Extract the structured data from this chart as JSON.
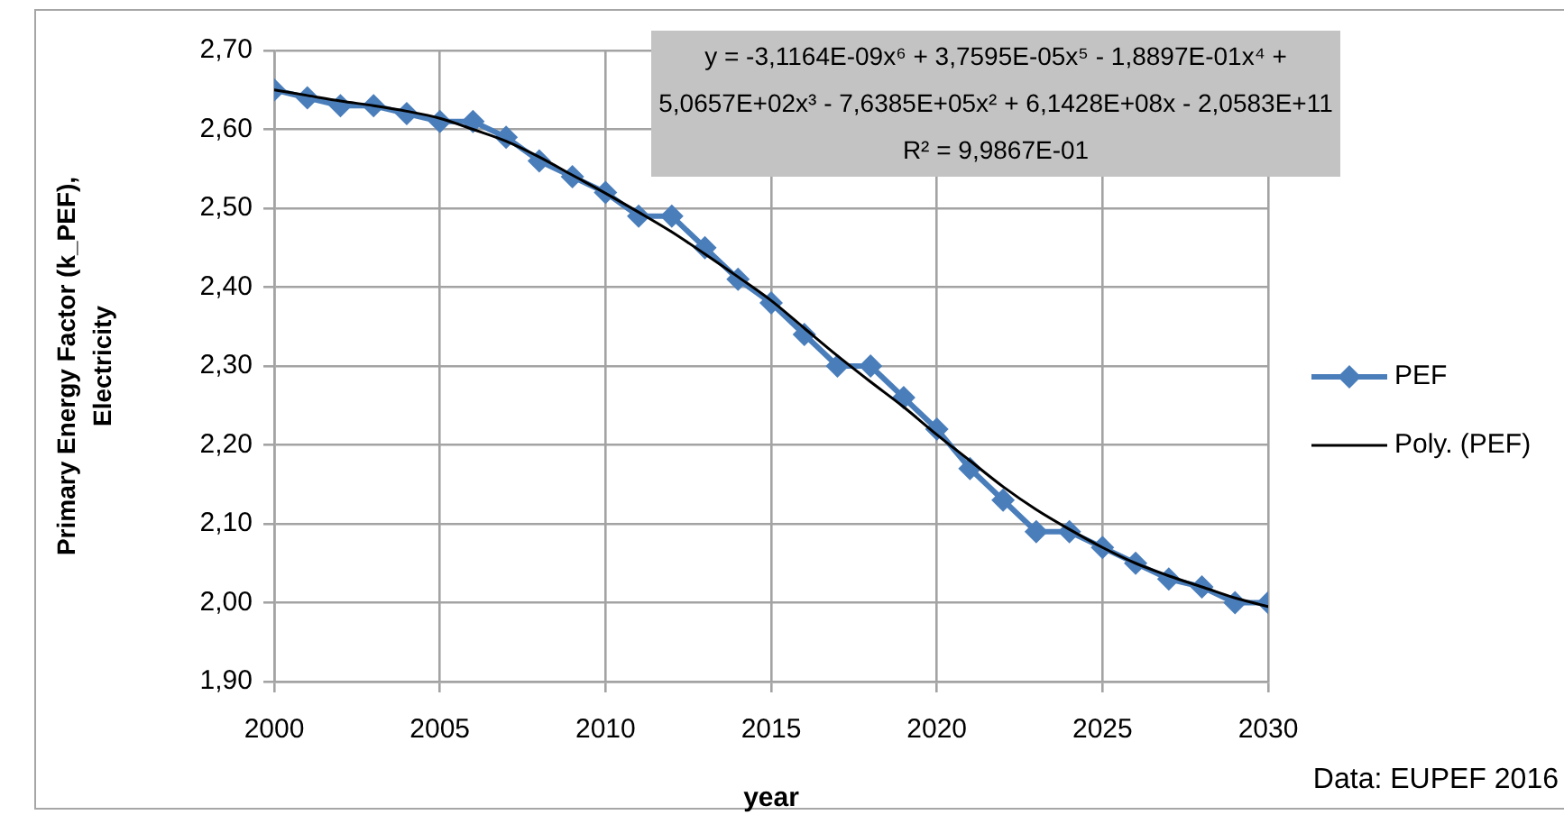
{
  "chart_data": {
    "type": "line",
    "xlabel": "year",
    "ylabel": "Primary Energy Factor (k_PEF),\nElectricity",
    "x": [
      2000,
      2001,
      2002,
      2003,
      2004,
      2005,
      2006,
      2007,
      2008,
      2009,
      2010,
      2011,
      2012,
      2013,
      2014,
      2015,
      2016,
      2017,
      2018,
      2019,
      2020,
      2021,
      2022,
      2023,
      2024,
      2025,
      2026,
      2027,
      2028,
      2029,
      2030
    ],
    "xlim": [
      2000,
      2030
    ],
    "xticks": [
      2000,
      2005,
      2010,
      2015,
      2020,
      2025,
      2030
    ],
    "ylim": [
      1.9,
      2.7
    ],
    "yticks": [
      {
        "value": 1.9,
        "label": "1,90"
      },
      {
        "value": 2.0,
        "label": "2,00"
      },
      {
        "value": 2.1,
        "label": "2,10"
      },
      {
        "value": 2.2,
        "label": "2,20"
      },
      {
        "value": 2.3,
        "label": "2,30"
      },
      {
        "value": 2.4,
        "label": "2,40"
      },
      {
        "value": 2.5,
        "label": "2,50"
      },
      {
        "value": 2.6,
        "label": "2,60"
      },
      {
        "value": 2.7,
        "label": "2,70"
      }
    ],
    "grid": true,
    "legend": "right",
    "marker": "diamond",
    "line_style": "solid",
    "series": [
      {
        "name": "PEF",
        "color": "#4a7ebb",
        "values": [
          2.65,
          2.64,
          2.63,
          2.63,
          2.62,
          2.61,
          2.61,
          2.59,
          2.56,
          2.54,
          2.52,
          2.49,
          2.49,
          2.45,
          2.41,
          2.38,
          2.34,
          2.3,
          2.3,
          2.26,
          2.22,
          2.17,
          2.13,
          2.09,
          2.09,
          2.07,
          2.05,
          2.03,
          2.02,
          2.0,
          2.0
        ]
      },
      {
        "name": "Poly. (PEF)",
        "type": "line",
        "marker": "none",
        "color": "#000000",
        "x": [
          2000,
          2001,
          2002,
          2003,
          2004,
          2005,
          2006,
          2007,
          2008,
          2009,
          2010,
          2011,
          2012,
          2013,
          2014,
          2015,
          2016,
          2017,
          2018,
          2019,
          2020,
          2021,
          2022,
          2023,
          2024,
          2025,
          2026,
          2027,
          2028,
          2029,
          2030
        ],
        "values": [
          2.65,
          2.643,
          2.636,
          2.63,
          2.623,
          2.614,
          2.6,
          2.585,
          2.565,
          2.542,
          2.519,
          2.495,
          2.47,
          2.442,
          2.413,
          2.383,
          2.348,
          2.313,
          2.28,
          2.248,
          2.213,
          2.18,
          2.147,
          2.118,
          2.093,
          2.07,
          2.05,
          2.034,
          2.02,
          2.006,
          1.995
        ]
      }
    ],
    "annotations": [
      "y = -3,1164E-09x⁶ + 3,7595E-05x⁵ - 1,8897E-01x⁴ + 5,0657E+02x³ - 7,6385E+05x² + 6,1428E+08x - 2,0583E+11",
      "R² = 9,9867E-01",
      "Data: EUPEF 2016"
    ]
  }
}
